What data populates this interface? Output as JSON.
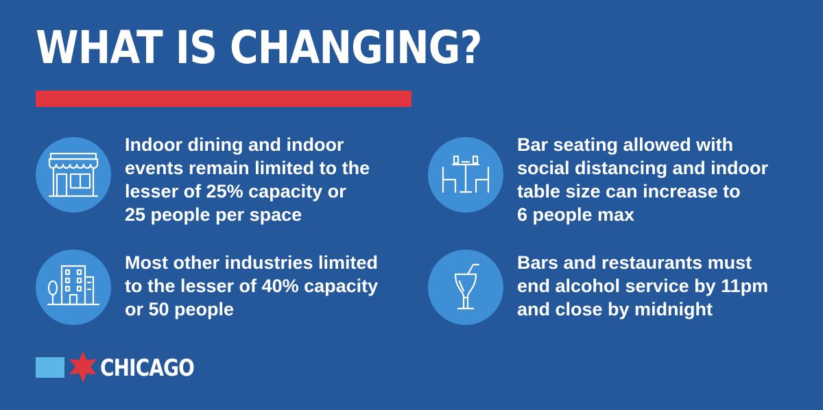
{
  "title": "WHAT IS CHANGING?",
  "colors": {
    "background": "#24589a",
    "accent_bar": "#e0343f",
    "icon_circle": "#3e8fd6",
    "flag_blue": "#5cb6e8",
    "star_red": "#e0343f"
  },
  "items": [
    {
      "icon": "storefront-icon",
      "lines": [
        "Indoor dining and indoor",
        "events remain limited to the",
        "lesser of 25% capacity or",
        "25 people per space"
      ]
    },
    {
      "icon": "bar-seating-icon",
      "lines": [
        "Bar seating allowed with",
        "social distancing and indoor",
        "table size can increase to",
        "6 people max"
      ]
    },
    {
      "icon": "buildings-icon",
      "lines": [
        "Most other industries limited",
        "to the lesser of 40% capacity",
        "or 50 people"
      ]
    },
    {
      "icon": "cocktail-icon",
      "lines": [
        "Bars and restaurants must",
        "end alcohol service by 11pm",
        "and close by midnight"
      ]
    }
  ],
  "footer": {
    "logo_text": "CHICAGO",
    "logo_icon": "six-point-star-icon"
  }
}
